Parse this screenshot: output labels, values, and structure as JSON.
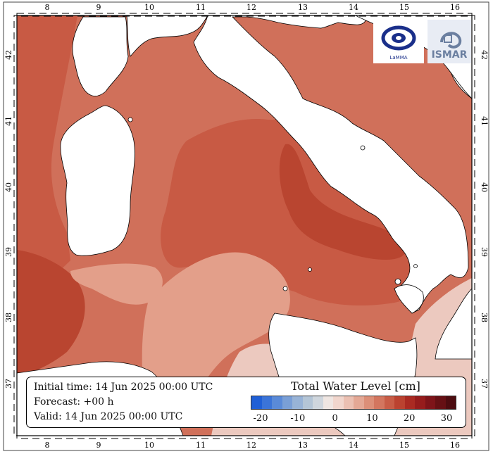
{
  "map": {
    "variable": "Total Water Level [cm]",
    "lon_ticks": [
      "8",
      "9",
      "10",
      "11",
      "12",
      "13",
      "14",
      "15",
      "16"
    ],
    "lat_ticks": [
      "42",
      "41",
      "40",
      "39",
      "38",
      "37"
    ],
    "colors": {
      "land": "#ffffff",
      "sea_base": "#d0705a",
      "sea_light": "#e39f8a",
      "sea_mid": "#c85a44",
      "sea_dark": "#b94530",
      "sea_pale": "#ecc9bf"
    }
  },
  "info": {
    "initial_time": "Initial time: 14 Jun 2025 00:00 UTC",
    "forecast": "Forecast: +00 h",
    "valid": "Valid: 14 Jun 2025 00:00 UTC"
  },
  "colorbar": {
    "title": "Total Water Level [cm]",
    "tick_labels": [
      "-20",
      "-10",
      "0",
      "10",
      "20",
      "30"
    ],
    "colors": [
      "#1f5fd6",
      "#3b74d8",
      "#5a8ad8",
      "#7a9fd6",
      "#98b3d6",
      "#b4c5d6",
      "#cfd6dd",
      "#efe6e2",
      "#f1d6cd",
      "#ebc0b2",
      "#e4a895",
      "#dc8f78",
      "#d3765f",
      "#c85c46",
      "#bb4230",
      "#aa2a22",
      "#961c1c",
      "#7e1419",
      "#661014",
      "#4d0c10"
    ]
  },
  "logos": {
    "lamma_text": "LaMMA",
    "ismar_text": "ISMAR"
  }
}
